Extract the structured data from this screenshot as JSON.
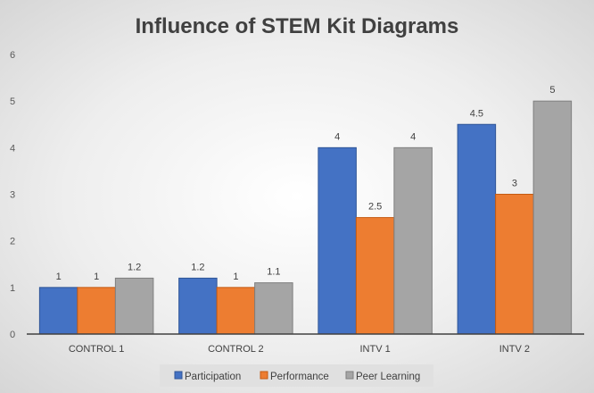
{
  "chart_data": {
    "type": "bar",
    "title": "Influence of STEM Kit Diagrams",
    "categories": [
      "CONTROL 1",
      "CONTROL 2",
      "INTV 1",
      "INTV 2"
    ],
    "series": [
      {
        "name": "Participation",
        "values": [
          1,
          1.2,
          4,
          4.5
        ],
        "color": "#4472C4",
        "labels": [
          "1",
          "1.2",
          "4",
          "4.5"
        ]
      },
      {
        "name": "Performance",
        "values": [
          1,
          1,
          2.5,
          3
        ],
        "color": "#ED7D31",
        "labels": [
          "1",
          "1",
          "2.5",
          "3"
        ]
      },
      {
        "name": "Peer Learning",
        "values": [
          1.2,
          1.1,
          4,
          5
        ],
        "color": "#A5A5A5",
        "labels": [
          "1.2",
          "1.1",
          "4",
          "5"
        ]
      }
    ],
    "ylim": [
      0,
      6
    ],
    "yticks": [
      "0",
      "1",
      "2",
      "3",
      "4",
      "5",
      "6"
    ],
    "grid": false,
    "legend": "bottom",
    "xlabel": "",
    "ylabel": ""
  }
}
